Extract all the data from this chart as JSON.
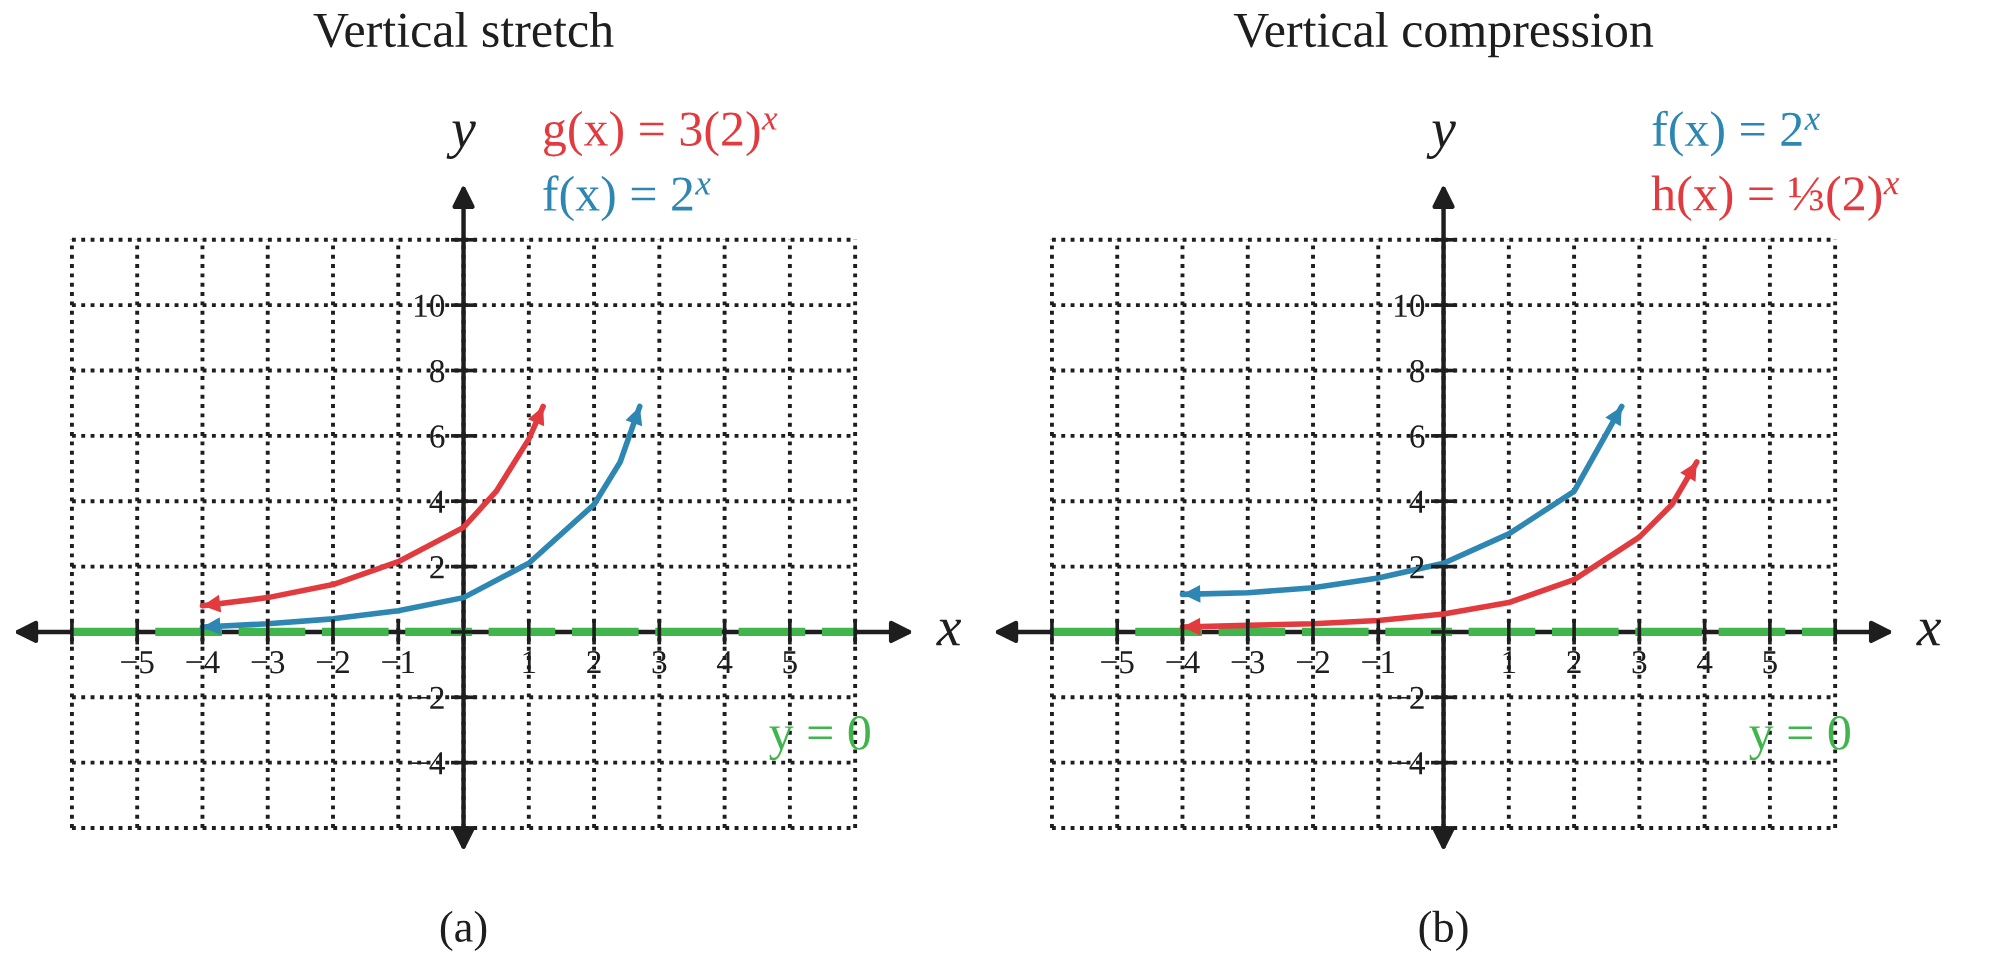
{
  "chart_data": [
    {
      "type": "line",
      "title": "Vertical stretch",
      "xlabel": "x",
      "ylabel": "y",
      "xlim": [
        -6,
        6
      ],
      "ylim": [
        -6,
        12
      ],
      "xticks": [
        {
          "value": -6,
          "label": null
        },
        -5,
        -4,
        -3,
        -2,
        -1,
        {
          "value": 0,
          "label": null
        },
        1,
        2,
        3,
        4,
        5,
        {
          "value": 6,
          "label": null
        }
      ],
      "yticks": [
        {
          "value": -6,
          "label": null
        },
        -4,
        -2,
        {
          "value": 0,
          "label": null
        },
        2,
        4,
        6,
        8,
        10,
        {
          "value": 12,
          "label": null
        }
      ],
      "grid": true,
      "series": [
        {
          "name": "g(x) = 3(2)$^{x}$",
          "color": "#e23b3f",
          "x": [
            -4,
            -3,
            -2,
            -1,
            0,
            0.5,
            1,
            1.22
          ],
          "values": [
            0.8,
            1.05,
            1.45,
            2.15,
            3.2,
            4.3,
            5.9,
            6.9
          ]
        },
        {
          "name": "f(x) = 2$^{x}$",
          "color": "#2e87b3",
          "x": [
            -4,
            -3,
            -2,
            -1,
            0,
            1,
            2,
            2.4,
            2.7
          ],
          "values": [
            0.15,
            0.25,
            0.4,
            0.65,
            1.05,
            2.1,
            3.9,
            5.2,
            6.9
          ]
        }
      ],
      "ref_lines": [
        {
          "axis": "y",
          "value": 0,
          "label": "y = 0",
          "color": "#3fb54b",
          "line_style": "dashed"
        }
      ],
      "annotations": [
        "(a)"
      ]
    },
    {
      "type": "line",
      "title": "Vertical compression",
      "xlabel": "x",
      "ylabel": "y",
      "xlim": [
        -6,
        6
      ],
      "ylim": [
        -6,
        12
      ],
      "xticks": [
        {
          "value": -6,
          "label": null
        },
        -5,
        -4,
        -3,
        -2,
        -1,
        {
          "value": 0,
          "label": null
        },
        1,
        2,
        3,
        4,
        5,
        {
          "value": 6,
          "label": null
        }
      ],
      "yticks": [
        {
          "value": -6,
          "label": null
        },
        -4,
        -2,
        {
          "value": 0,
          "label": null
        },
        2,
        4,
        6,
        8,
        10,
        {
          "value": 12,
          "label": null
        }
      ],
      "grid": true,
      "series": [
        {
          "name": "f(x) = 2$^{x}$",
          "color": "#2e87b3",
          "x": [
            -4,
            -3,
            -2,
            -1,
            0,
            1,
            2,
            2.73
          ],
          "values": [
            1.15,
            1.2,
            1.35,
            1.65,
            2.1,
            3.0,
            4.3,
            6.9
          ]
        },
        {
          "name": "h(x) = ⅓(2)$^{x}$",
          "color": "#e23b3f",
          "x": [
            -4,
            -3,
            -2,
            -1,
            0,
            1,
            2,
            3,
            3.5,
            3.88
          ],
          "values": [
            0.15,
            0.2,
            0.25,
            0.35,
            0.55,
            0.9,
            1.6,
            2.9,
            3.9,
            5.2
          ]
        }
      ],
      "ref_lines": [
        {
          "axis": "y",
          "value": 0,
          "label": "y = 0",
          "color": "#3fb54b",
          "line_style": "dashed"
        }
      ],
      "annotations": [
        "(b)"
      ]
    }
  ]
}
